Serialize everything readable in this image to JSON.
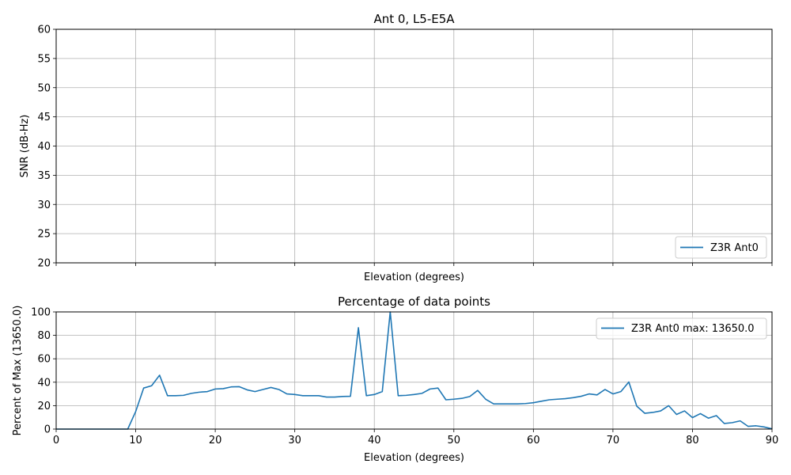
{
  "chart_data": [
    {
      "type": "line",
      "title": "Ant 0, L5-E5A",
      "xlabel": "Elevation (degrees)",
      "ylabel": "SNR (dB-Hz)",
      "xlim": [
        0,
        90
      ],
      "ylim": [
        20,
        60
      ],
      "x_ticks": [
        0,
        10,
        20,
        30,
        40,
        50,
        60,
        70,
        80,
        90
      ],
      "y_ticks": [
        "20",
        "25",
        "30",
        "35",
        "40",
        "45",
        "50",
        "55",
        "60"
      ],
      "x_tick_labels_visible": false,
      "grid": true,
      "legend_position": "lower-right",
      "series": [
        {
          "name": "Z3R Ant0",
          "color": "#1f77b4",
          "x": [],
          "y": []
        }
      ]
    },
    {
      "type": "line",
      "title": "Percentage of data points",
      "xlabel": "Elevation (degrees)",
      "ylabel": "Percent of Max (13650.0)",
      "xlim": [
        0,
        90
      ],
      "ylim": [
        0,
        100
      ],
      "x_ticks": [
        "0",
        "10",
        "20",
        "30",
        "40",
        "50",
        "60",
        "70",
        "80",
        "90"
      ],
      "y_ticks": [
        "0",
        "20",
        "40",
        "60",
        "80",
        "100"
      ],
      "grid": true,
      "legend_position": "upper-right",
      "series": [
        {
          "name": "Z3R Ant0 max: 13650.0",
          "color": "#1f77b4",
          "x": [
            0,
            1,
            2,
            3,
            4,
            5,
            6,
            7,
            8,
            9,
            10,
            11,
            12,
            13,
            14,
            15,
            16,
            17,
            18,
            19,
            20,
            21,
            22,
            23,
            24,
            25,
            26,
            27,
            28,
            29,
            30,
            31,
            32,
            33,
            34,
            35,
            36,
            37,
            38,
            39,
            40,
            41,
            42,
            43,
            44,
            45,
            46,
            47,
            48,
            49,
            50,
            51,
            52,
            53,
            54,
            55,
            56,
            57,
            58,
            59,
            60,
            61,
            62,
            63,
            64,
            65,
            66,
            67,
            68,
            69,
            70,
            71,
            72,
            73,
            74,
            75,
            76,
            77,
            78,
            79,
            80,
            81,
            82,
            83,
            84,
            85,
            86,
            87,
            88,
            89,
            90
          ],
          "y": [
            0,
            0,
            0,
            0,
            0,
            0,
            0,
            0,
            0,
            0,
            15,
            35,
            37,
            46,
            28.5,
            28.5,
            28.8,
            30.5,
            31.5,
            32,
            34.2,
            34.5,
            36,
            36.2,
            33.5,
            32,
            33.8,
            35.5,
            33.8,
            30,
            29.5,
            28.5,
            28.5,
            28.5,
            27.3,
            27.3,
            27.8,
            28,
            86.5,
            28.5,
            29.5,
            32,
            100,
            28.5,
            28.8,
            29.5,
            30.5,
            34.2,
            35,
            25,
            25.5,
            26.2,
            27.8,
            33,
            25.5,
            21.5,
            21.5,
            21.5,
            21.5,
            21.8,
            22.5,
            23.8,
            25,
            25.5,
            26,
            26.8,
            28,
            30,
            29.2,
            33.8,
            30,
            32,
            40.2,
            19.5,
            13.5,
            14.2,
            15.5,
            20,
            12.5,
            15.5,
            9.8,
            13.2,
            9.3,
            11.5,
            4.8,
            5.5,
            7,
            2.3,
            2.8,
            1.8,
            0.2
          ]
        }
      ]
    }
  ]
}
